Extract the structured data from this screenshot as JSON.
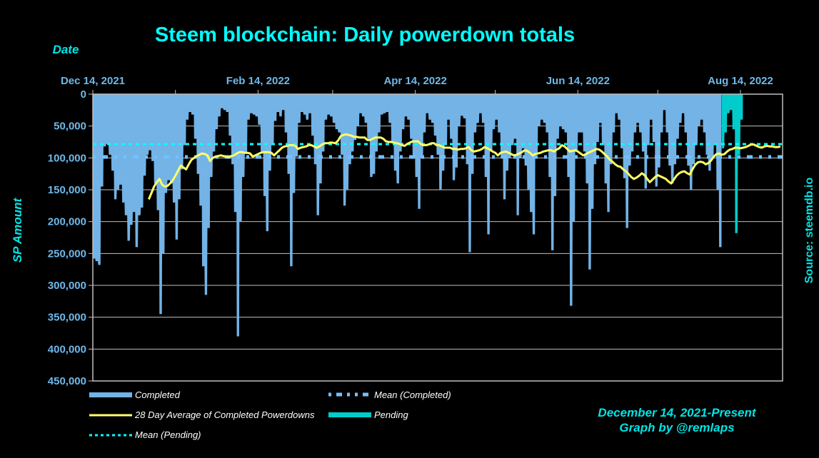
{
  "chart_data": {
    "type": "area",
    "title": "Steem blockchain: Daily powerdown totals",
    "xlabel": "Date",
    "ylabel": "SP Amount",
    "source": "Source: steemdb.io",
    "credit_lines": [
      "December 14, 2021-Present",
      "Graph by @remlaps"
    ],
    "x_start_date": "2021-12-14",
    "x_tick_labels": [
      "Dec 14, 2021",
      "Feb 14, 2022",
      "Apr 14, 2022",
      "Jun 14, 2022",
      "Aug 14, 2022"
    ],
    "x_tick_days": [
      0,
      62,
      121,
      182,
      243
    ],
    "x_minor_tick_days": [
      31,
      90,
      151,
      212
    ],
    "x_range_days": [
      0,
      262
    ],
    "y_inverted": true,
    "ylim": [
      0,
      450000
    ],
    "y_ticks": [
      0,
      50000,
      100000,
      150000,
      200000,
      250000,
      300000,
      350000,
      400000,
      450000
    ],
    "y_tick_labels": [
      "0",
      "50,000",
      "100,000",
      "150,000",
      "200,000",
      "250,000",
      "300,000",
      "350,000",
      "400,000",
      "450,000"
    ],
    "grid": true,
    "colors": {
      "completed": "#73b3e6",
      "pending": "#00cccc",
      "average": "#ffff66",
      "mean_completed": "#73c0ff",
      "mean_pending": "#00ffff",
      "grid": "#bfbfbf"
    },
    "series": [
      {
        "name": "Completed",
        "kind": "area",
        "start_day": 0,
        "values": [
          258000,
          262000,
          268000,
          145000,
          82000,
          78000,
          95000,
          120000,
          165000,
          150000,
          142000,
          170000,
          190000,
          230000,
          205000,
          185000,
          240000,
          190000,
          178000,
          128000,
          95000,
          88000,
          105000,
          140000,
          182000,
          345000,
          250000,
          155000,
          135000,
          140000,
          170000,
          228000,
          165000,
          118000,
          80000,
          40000,
          28000,
          32000,
          70000,
          125000,
          175000,
          270000,
          315000,
          210000,
          130000,
          90000,
          55000,
          35000,
          22000,
          25000,
          28000,
          65000,
          110000,
          185000,
          380000,
          200000,
          130000,
          92000,
          40000,
          30000,
          32000,
          35000,
          48000,
          90000,
          160000,
          215000,
          120000,
          80000,
          42000,
          28000,
          35000,
          25000,
          60000,
          125000,
          270000,
          155000,
          98000,
          45000,
          28000,
          32000,
          40000,
          30000,
          65000,
          110000,
          190000,
          140000,
          90000,
          40000,
          32000,
          35000,
          45000,
          55000,
          60000,
          95000,
          175000,
          150000,
          110000,
          90000,
          72000,
          50000,
          30000,
          35000,
          45000,
          70000,
          130000,
          125000,
          90000,
          60000,
          32000,
          30000,
          28000,
          45000,
          75000,
          120000,
          140000,
          90000,
          55000,
          35000,
          40000,
          70000,
          100000,
          130000,
          180000,
          100000,
          60000,
          30000,
          40000,
          45000,
          65000,
          95000,
          150000,
          120000,
          80000,
          40000,
          70000,
          135000,
          115000,
          50000,
          34000,
          38000,
          110000,
          248000,
          125000,
          60000,
          45000,
          30000,
          45000,
          130000,
          220000,
          90000,
          55000,
          40000,
          60000,
          100000,
          165000,
          120000,
          100000,
          80000,
          70000,
          190000,
          100000,
          85000,
          112000,
          150000,
          185000,
          220000,
          95000,
          50000,
          40000,
          45000,
          60000,
          130000,
          245000,
          160000,
          70000,
          50000,
          55000,
          60000,
          130000,
          332000,
          200000,
          90000,
          60000,
          60000,
          90000,
          140000,
          275000,
          180000,
          110000,
          75000,
          45000,
          80000,
          140000,
          185000,
          110000,
          60000,
          30000,
          40000,
          85000,
          132000,
          210000,
          112000,
          90000,
          60000,
          45000,
          60000,
          90000,
          148000,
          80000,
          40000,
          75000,
          145000,
          115000,
          60000,
          25000,
          60000,
          112000,
          140000,
          110000,
          70000,
          45000,
          30000,
          60000,
          112000,
          150000,
          110000,
          80000,
          50000,
          40000,
          60000,
          95000,
          120000,
          100000,
          80000,
          150000,
          240000
        ],
        "note": "approximate daily values read from inverted area fill"
      },
      {
        "name": "Pending",
        "kind": "area",
        "start_day": 236,
        "values": [
          85000,
          60000,
          30000,
          25000,
          55000,
          218000,
          95000,
          40000
        ],
        "note": "approximate"
      },
      {
        "name": "28 Day Average of Completed Powerdowns",
        "kind": "line",
        "start_day": 21,
        "values": [
          165000,
          155000,
          145000,
          138000,
          133000,
          142000,
          145000,
          144000,
          140000,
          135000,
          128000,
          120000,
          112000,
          115000,
          118000,
          110000,
          103000,
          100000,
          97000,
          95000,
          93000,
          94000,
          96000,
          105000,
          100000,
          98000,
          97000,
          96000,
          97000,
          98000,
          99000,
          97000,
          96000,
          93000,
          91000,
          91000,
          92000,
          92000,
          93000,
          98000,
          96000,
          94000,
          92000,
          91000,
          91000,
          91000,
          92000,
          96000,
          92000,
          88000,
          84000,
          82000,
          81000,
          80000,
          80000,
          81000,
          86000,
          84000,
          83000,
          82000,
          80000,
          80000,
          82000,
          84000,
          82000,
          79000,
          77000,
          77000,
          76000,
          76000,
          77000,
          73000,
          66000,
          64000,
          63000,
          64000,
          65000,
          67000,
          67000,
          68000,
          68000,
          68000,
          72000,
          72000,
          70000,
          68000,
          68000,
          68000,
          70000,
          74000,
          75000,
          75000,
          76000,
          77000,
          78000,
          80000,
          81000,
          78000,
          76000,
          74000,
          74000,
          74000,
          78000,
          80000,
          80000,
          79000,
          77000,
          77000,
          80000,
          80000,
          82000,
          84000,
          84000,
          84000,
          86000,
          86000,
          87000,
          86000,
          86000,
          85000,
          83000,
          88000,
          90000,
          89000,
          88000,
          86000,
          83000,
          85000,
          87000,
          90000,
          92000,
          96000,
          92000,
          91000,
          90000,
          92000,
          94000,
          96000,
          95000,
          93000,
          91000,
          88000,
          89000,
          92000,
          96000,
          94000,
          93000,
          92000,
          90000,
          89000,
          88000,
          88000,
          90000,
          87000,
          85000,
          80000,
          82000,
          86000,
          90000,
          89000,
          88000,
          90000,
          93000,
          96000,
          94000,
          92000,
          90000,
          88000,
          86000,
          87000,
          90000,
          94000,
          98000,
          103000,
          106000,
          110000,
          113000,
          114000,
          118000,
          121000,
          125000,
          130000,
          133000,
          131000,
          128000,
          124000,
          127000,
          133000,
          138000,
          134000,
          130000,
          127000,
          129000,
          131000,
          133000,
          137000,
          140000,
          134000,
          128000,
          124000,
          122000,
          121000,
          124000,
          126000,
          118000,
          111000,
          107000,
          106000,
          107000,
          110000,
          108000,
          104000,
          98000,
          94000,
          93000,
          95000,
          94000,
          90000,
          87000,
          86000,
          84000,
          84000,
          85000,
          84000,
          83000,
          81000,
          79000,
          79000,
          81000,
          83000,
          84000,
          82000,
          81000,
          82000,
          82000,
          83000,
          83000,
          82000
        ],
        "note": "approximate"
      },
      {
        "name": "Mean (Completed)",
        "kind": "hline",
        "value": 98500
      },
      {
        "name": "Mean (Pending)",
        "kind": "hline",
        "value": 78400
      }
    ],
    "legend": {
      "placement": "bottom",
      "items": [
        {
          "label": "Completed",
          "style": "area",
          "color": "#73b3e6"
        },
        {
          "label": "Mean (Completed)",
          "style": "dash-dot",
          "color": "#73c0ff"
        },
        {
          "label": "28 Day Average of Completed Powerdowns",
          "style": "line",
          "color": "#ffff66"
        },
        {
          "label": "Pending",
          "style": "area",
          "color": "#00cccc"
        },
        {
          "label": "Mean (Pending)",
          "style": "dotted",
          "color": "#00ffff"
        }
      ]
    }
  }
}
